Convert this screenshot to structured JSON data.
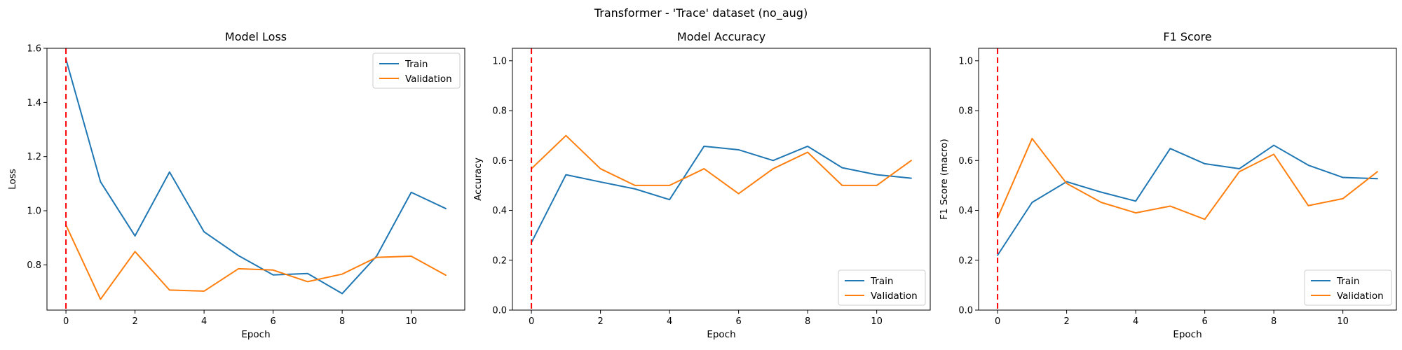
{
  "figure": {
    "suptitle": "Transformer - 'Trace' dataset (no_aug)"
  },
  "colors": {
    "train": "#1f77b4",
    "validation": "#ff7f0e",
    "marker": "#ff0000"
  },
  "chart_data": [
    {
      "type": "line",
      "title": "Model Loss",
      "xlabel": "Epoch",
      "ylabel": "Loss",
      "xlim": [
        -0.55,
        11.55
      ],
      "ylim": [
        0.633,
        1.6
      ],
      "xticks": [
        0,
        2,
        4,
        6,
        8,
        10
      ],
      "yticks": [
        0.8,
        1.0,
        1.2,
        1.4,
        1.6
      ],
      "tick_decimals": 1,
      "x": [
        0,
        1,
        2,
        3,
        4,
        5,
        6,
        7,
        8,
        9,
        10,
        11
      ],
      "vline_x": 0,
      "legend_position": "upper right",
      "grid": false,
      "series": [
        {
          "name": "Train",
          "color_key": "train",
          "values": [
            1.56,
            1.107,
            0.907,
            1.143,
            0.922,
            0.834,
            0.763,
            0.768,
            0.694,
            0.833,
            1.068,
            1.008
          ]
        },
        {
          "name": "Validation",
          "color_key": "validation",
          "values": [
            0.947,
            0.673,
            0.849,
            0.707,
            0.703,
            0.786,
            0.781,
            0.738,
            0.766,
            0.828,
            0.832,
            0.762
          ]
        }
      ]
    },
    {
      "type": "line",
      "title": "Model Accuracy",
      "xlabel": "Epoch",
      "ylabel": "Accuracy",
      "xlim": [
        -0.55,
        11.55
      ],
      "ylim": [
        0.0,
        1.05
      ],
      "xticks": [
        0,
        2,
        4,
        6,
        8,
        10
      ],
      "yticks": [
        0.0,
        0.2,
        0.4,
        0.6,
        0.8,
        1.0
      ],
      "tick_decimals": 1,
      "x": [
        0,
        1,
        2,
        3,
        4,
        5,
        6,
        7,
        8,
        9,
        10,
        11
      ],
      "vline_x": 0,
      "legend_position": "lower right",
      "grid": false,
      "series": [
        {
          "name": "Train",
          "color_key": "train",
          "values": [
            0.271,
            0.543,
            0.514,
            0.486,
            0.443,
            0.657,
            0.643,
            0.6,
            0.657,
            0.571,
            0.543,
            0.529
          ]
        },
        {
          "name": "Validation",
          "color_key": "validation",
          "values": [
            0.567,
            0.7,
            0.567,
            0.5,
            0.5,
            0.567,
            0.467,
            0.567,
            0.633,
            0.5,
            0.5,
            0.6
          ]
        }
      ]
    },
    {
      "type": "line",
      "title": "F1 Score",
      "xlabel": "Epoch",
      "ylabel": "F1 Score (macro)",
      "xlim": [
        -0.55,
        11.55
      ],
      "ylim": [
        0.0,
        1.05
      ],
      "xticks": [
        0,
        2,
        4,
        6,
        8,
        10
      ],
      "yticks": [
        0.0,
        0.2,
        0.4,
        0.6,
        0.8,
        1.0
      ],
      "tick_decimals": 1,
      "x": [
        0,
        1,
        2,
        3,
        4,
        5,
        6,
        7,
        8,
        9,
        10,
        11
      ],
      "vline_x": 0,
      "legend_position": "lower right",
      "grid": false,
      "series": [
        {
          "name": "Train",
          "color_key": "train",
          "values": [
            0.22,
            0.432,
            0.515,
            0.473,
            0.437,
            0.648,
            0.587,
            0.567,
            0.661,
            0.581,
            0.532,
            0.527
          ]
        },
        {
          "name": "Validation",
          "color_key": "validation",
          "values": [
            0.37,
            0.688,
            0.508,
            0.432,
            0.39,
            0.417,
            0.364,
            0.555,
            0.625,
            0.419,
            0.447,
            0.555
          ]
        }
      ]
    }
  ]
}
